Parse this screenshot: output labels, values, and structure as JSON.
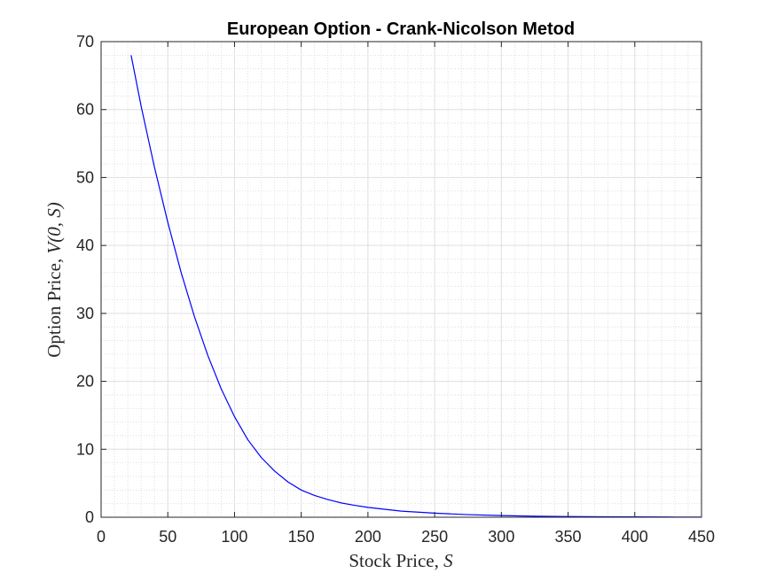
{
  "chart_data": {
    "type": "line",
    "title": "European Option - Crank-Nicolson Metod",
    "xlabel": {
      "text": "Stock Price, ",
      "math": "S"
    },
    "ylabel": {
      "text": "Option Price, ",
      "math": "V(0, S)"
    },
    "xlim": [
      0,
      450
    ],
    "ylim": [
      0,
      70
    ],
    "xticks": [
      0,
      50,
      100,
      150,
      200,
      250,
      300,
      350,
      400,
      450
    ],
    "yticks": [
      0,
      10,
      20,
      30,
      40,
      50,
      60,
      70
    ],
    "grid": true,
    "minor_grid": true,
    "series": [
      {
        "color": "#0000ff",
        "x": [
          22.5,
          30,
          40,
          50,
          60,
          70,
          80,
          90,
          100,
          110,
          120,
          130,
          140,
          150,
          160,
          170,
          180,
          190,
          200,
          225,
          250,
          275,
          300,
          325,
          350,
          375,
          400,
          425,
          450
        ],
        "y": [
          68,
          60.5,
          51.5,
          43.4,
          36.0,
          29.5,
          23.8,
          18.9,
          14.8,
          11.4,
          8.8,
          6.8,
          5.2,
          4.0,
          3.2,
          2.6,
          2.1,
          1.75,
          1.45,
          0.9,
          0.6,
          0.38,
          0.24,
          0.15,
          0.1,
          0.07,
          0.05,
          0.03,
          0.02
        ]
      }
    ]
  }
}
